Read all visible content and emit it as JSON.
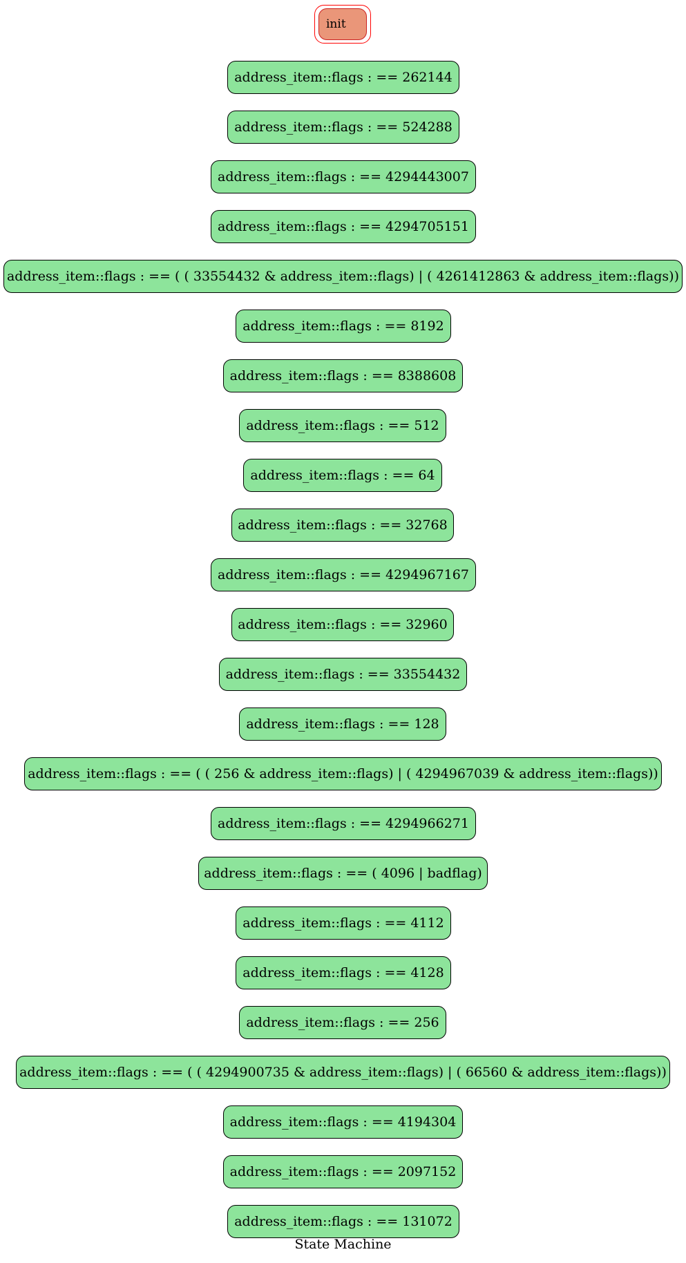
{
  "graph": {
    "title": "State Machine",
    "init_label": "init",
    "colors": {
      "state_fill": "#8de49b",
      "state_border": "#000000",
      "init_fill": "#ea9679",
      "init_border": "#ff0000"
    },
    "states": [
      "address_item::flags : == 262144",
      "address_item::flags : == 524288",
      "address_item::flags : == 4294443007",
      "address_item::flags : == 4294705151",
      "address_item::flags : == ( ( 33554432 & address_item::flags) | ( 4261412863 & address_item::flags))",
      "address_item::flags : == 8192",
      "address_item::flags : == 8388608",
      "address_item::flags : == 512",
      "address_item::flags : == 64",
      "address_item::flags : == 32768",
      "address_item::flags : == 4294967167",
      "address_item::flags : == 32960",
      "address_item::flags : == 33554432",
      "address_item::flags : == 128",
      "address_item::flags : == ( ( 256 & address_item::flags) | ( 4294967039 & address_item::flags))",
      "address_item::flags : == 4294966271",
      "address_item::flags : == ( 4096 | badflag)",
      "address_item::flags : == 4112",
      "address_item::flags : == 4128",
      "address_item::flags : == 256",
      "address_item::flags : == ( ( 4294900735 & address_item::flags) | ( 66560 & address_item::flags))",
      "address_item::flags : == 4194304",
      "address_item::flags : == 2097152",
      "address_item::flags : == 131072"
    ]
  }
}
